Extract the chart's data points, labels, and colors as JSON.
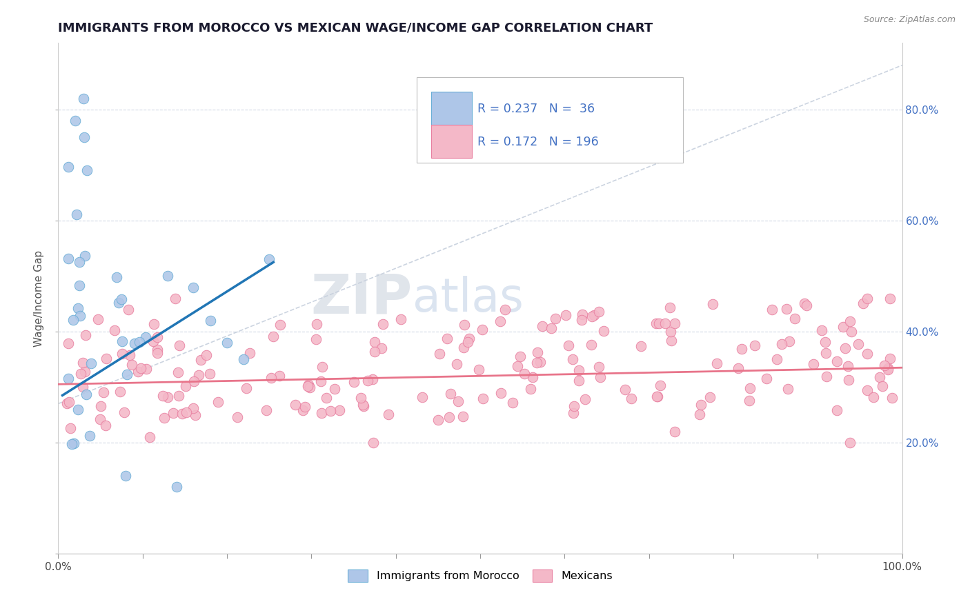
{
  "title": "IMMIGRANTS FROM MOROCCO VS MEXICAN WAGE/INCOME GAP CORRELATION CHART",
  "source": "Source: ZipAtlas.com",
  "ylabel": "Wage/Income Gap",
  "xlim": [
    0.0,
    1.0
  ],
  "ylim": [
    0.0,
    0.92
  ],
  "x_tick_labels": [
    "0.0%",
    "",
    "",
    "",
    "",
    "",
    "",
    "",
    "",
    "",
    "100.0%"
  ],
  "right_y_ticks": [
    0.0,
    0.2,
    0.4,
    0.6,
    0.8
  ],
  "right_y_labels": [
    "",
    "20.0%",
    "40.0%",
    "60.0%",
    "80.0%"
  ],
  "morocco_color": "#aec6e8",
  "mexican_color": "#f4b8c8",
  "morocco_edge": "#6aaed6",
  "mexican_edge": "#e87fa0",
  "morocco_line_color": "#2176b5",
  "mexican_line_color": "#e8748a",
  "diag_line_color": "#aab8cc",
  "grid_color": "#d0d8e4",
  "morocco_R": 0.237,
  "morocco_N": 36,
  "mexican_R": 0.172,
  "mexican_N": 196,
  "watermark_zip": "ZIP",
  "watermark_atlas": "atlas",
  "legend_label_morocco": "Immigrants from Morocco",
  "legend_label_mexican": "Mexicans",
  "legend_color_text": "#4472c4",
  "right_axis_color": "#4472c4"
}
